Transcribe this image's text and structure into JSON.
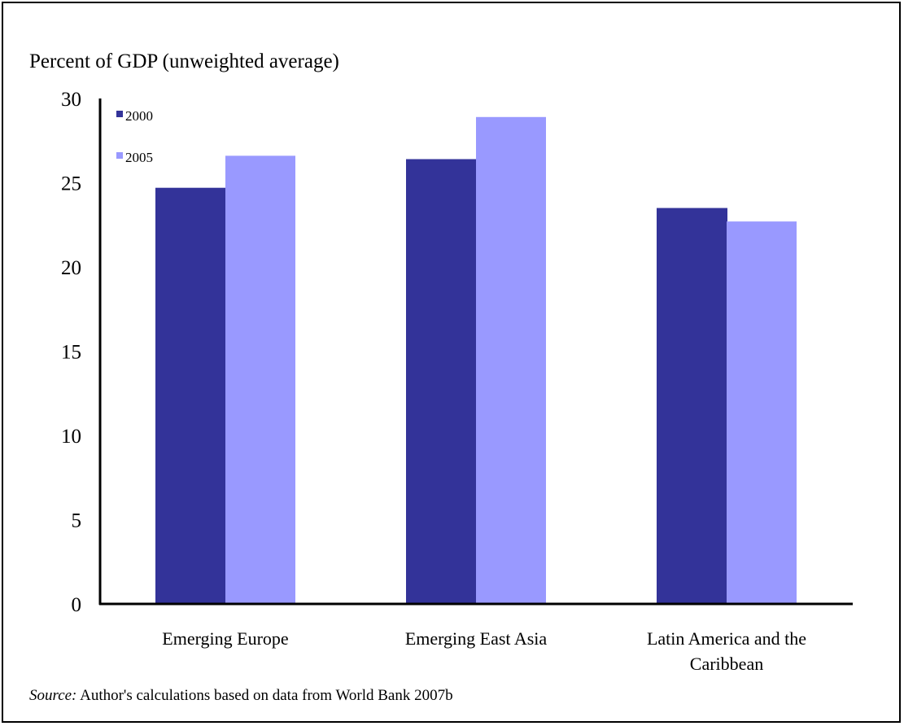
{
  "chart_data": {
    "type": "bar",
    "title": "",
    "ylabel": "Percent of GDP (unweighted average)",
    "xlabel": "",
    "categories": [
      [
        "Emerging Europe"
      ],
      [
        "Emerging East Asia"
      ],
      [
        "Latin America and the",
        "Caribbean"
      ]
    ],
    "series": [
      {
        "name": "2000",
        "values": [
          24.7,
          26.4,
          23.5
        ]
      },
      {
        "name": "2005",
        "values": [
          26.6,
          28.9,
          22.7
        ]
      }
    ],
    "ylim": [
      0,
      30
    ],
    "yticks": [
      "0",
      "5",
      "10",
      "15",
      "20",
      "25",
      "30"
    ],
    "legend_position": "top-left",
    "grid": false,
    "colors": {
      "2000": "#333399",
      "2005": "#9999ff"
    }
  },
  "source": {
    "prefix": "Source:",
    "text": " Author's calculations based on data from World Bank 2007b"
  }
}
